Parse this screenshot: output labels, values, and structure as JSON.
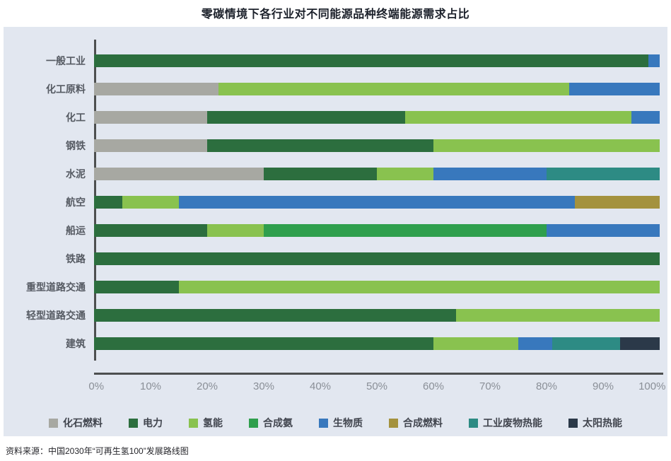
{
  "source": "资料来源：中国2030年“可再生氢100”发展路线图",
  "chart_data": {
    "type": "bar",
    "orientation": "horizontal",
    "stacked": true,
    "unit": "%",
    "title": "零碳情境下各行业对不同能源品种终端能源需求占比",
    "grid": false,
    "legend_position": "bottom",
    "panel_background": "#e2e7f0",
    "categories": [
      "一般工业",
      "化工原料",
      "化工",
      "钢铁",
      "水泥",
      "航空",
      "船运",
      "铁路",
      "重型道路交通",
      "轻型道路交通",
      "建筑"
    ],
    "series": [
      {
        "name": "化石燃料",
        "color": "#a7a8a2",
        "values": [
          0,
          22,
          20,
          20,
          30,
          0,
          0,
          0,
          0,
          0,
          0
        ]
      },
      {
        "name": "电力",
        "color": "#2c6e3e",
        "values": [
          98,
          0,
          35,
          40,
          20,
          5,
          20,
          100,
          15,
          64,
          60
        ]
      },
      {
        "name": "氢能",
        "color": "#89c24f",
        "values": [
          0,
          62,
          40,
          40,
          10,
          10,
          10,
          0,
          85,
          36,
          15
        ]
      },
      {
        "name": "合成氨",
        "color": "#2f9f4d",
        "values": [
          0,
          0,
          0,
          0,
          0,
          0,
          50,
          0,
          0,
          0,
          0
        ]
      },
      {
        "name": "生物质",
        "color": "#3878bd",
        "values": [
          2,
          16,
          5,
          0,
          20,
          70,
          20,
          0,
          0,
          0,
          6
        ]
      },
      {
        "name": "合成燃料",
        "color": "#a4923e",
        "values": [
          0,
          0,
          0,
          0,
          0,
          15,
          0,
          0,
          0,
          0,
          0
        ]
      },
      {
        "name": "工业废物热能",
        "color": "#2d8b84",
        "values": [
          0,
          0,
          0,
          0,
          20,
          0,
          0,
          0,
          0,
          0,
          12
        ]
      },
      {
        "name": "太阳热能",
        "color": "#2b3949",
        "values": [
          0,
          0,
          0,
          0,
          0,
          0,
          0,
          0,
          0,
          0,
          7
        ]
      }
    ],
    "x_axis": {
      "range": [
        0,
        100
      ],
      "ticks": [
        "0%",
        "10%",
        "20%",
        "30%",
        "40%",
        "50%",
        "60%",
        "70%",
        "80%",
        "90%",
        "100%"
      ]
    }
  }
}
